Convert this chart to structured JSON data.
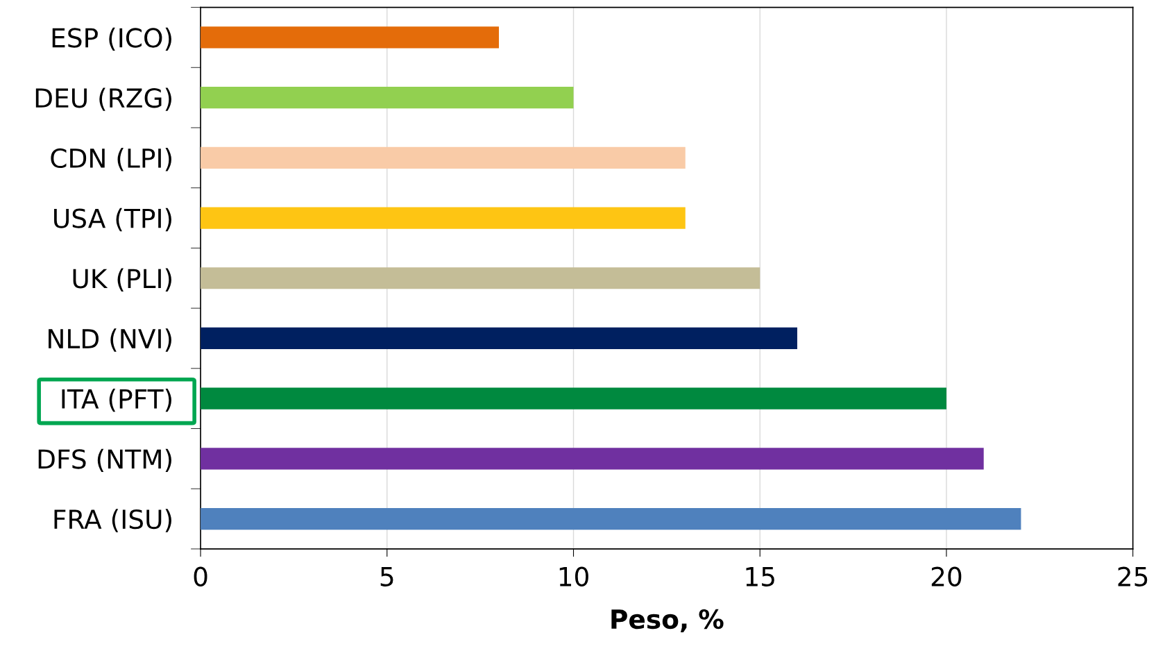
{
  "chart_data": {
    "type": "bar",
    "orientation": "horizontal",
    "xlabel": "Peso, %",
    "categories": [
      "ESP (ICO)",
      "DEU (RZG)",
      "CDN (LPI)",
      "USA (TPI)",
      "UK (PLI)",
      "NLD (NVI)",
      "ITA (PFT)",
      "DFS (NTM)",
      "FRA (ISU)"
    ],
    "values": [
      8,
      10,
      13,
      13,
      15,
      16,
      20,
      21,
      22
    ],
    "colors": [
      "#e46c0a",
      "#92d050",
      "#f9cba7",
      "#fec513",
      "#c4bd97",
      "#002060",
      "#00893f",
      "#7030a0",
      "#4f81bd"
    ],
    "xlim": [
      0,
      25
    ],
    "xticks": [
      0,
      5,
      10,
      15,
      20,
      25
    ],
    "grid": "x",
    "legend": false
  }
}
